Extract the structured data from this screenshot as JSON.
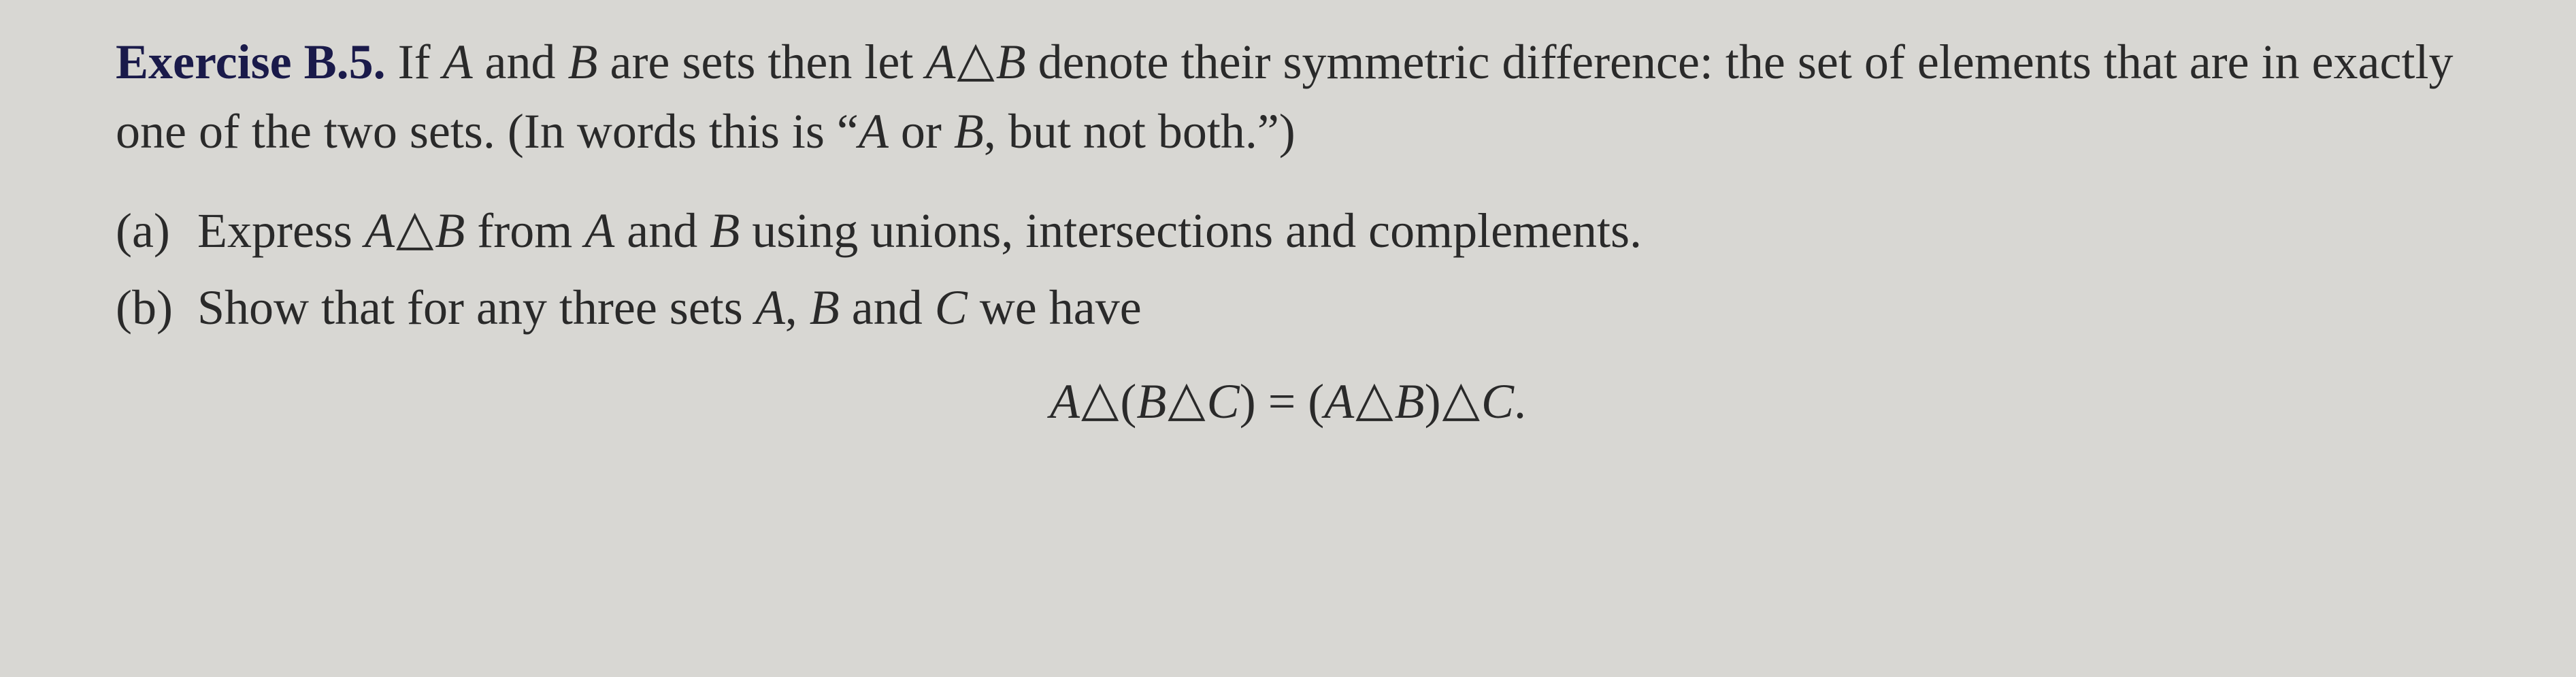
{
  "exercise": {
    "label": "Exercise B.5.",
    "intro_parts": {
      "p1": "If ",
      "A": "A",
      "p2": " and ",
      "B": "B",
      "p3": " are sets then let ",
      "AdB_A": "A",
      "AdB_tri": "△",
      "AdB_B": "B",
      "p4": " denote their symmetric difference: the set of elements that are in exactly one of the two sets. (In words this is “",
      "AorB_A": "A",
      "p5": " or ",
      "AorB_B": "B",
      "p6": ", but not both.”)"
    },
    "items": [
      {
        "marker": "(a)",
        "body": {
          "p1": "Express ",
          "A1": "A",
          "tri": "△",
          "B1": "B",
          "p2": " from ",
          "A2": "A",
          "p3": " and ",
          "B2": "B",
          "p4": " using unions, intersections and complements."
        }
      },
      {
        "marker": "(b)",
        "body": {
          "p1": "Show that for any three sets ",
          "A": "A",
          "comma1": ", ",
          "B": "B",
          "p2": " and ",
          "C": "C",
          "p3": " we have"
        }
      }
    ],
    "equation": {
      "A1": "A",
      "t1": "△",
      "lp1": "(",
      "B1": "B",
      "t2": "△",
      "C1": "C",
      "rp1": ")",
      "eq": " = ",
      "lp2": "(",
      "A2": "A",
      "t3": "△",
      "B2": "B",
      "rp2": ")",
      "t4": "△",
      "C2": "C",
      "dot": "."
    }
  }
}
